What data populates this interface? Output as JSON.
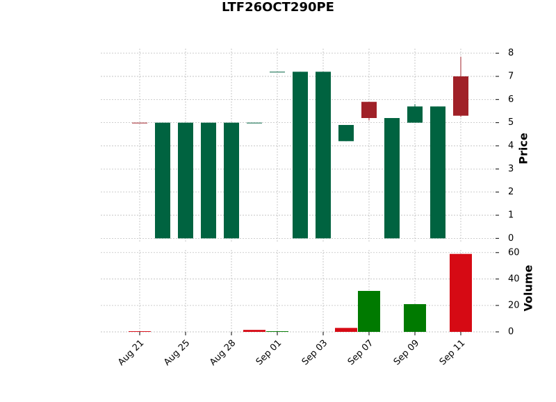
{
  "chart_data": {
    "type": "candlestick",
    "title": "LTF26OCT290PE",
    "categories": [
      "Aug 21",
      null,
      "Aug 25",
      null,
      "Aug 28",
      null,
      "Sep 01",
      null,
      "Sep 03",
      null,
      "Sep 07",
      null,
      "Sep 09",
      null,
      "Sep 11"
    ],
    "open": [
      5,
      0,
      0,
      0,
      0,
      5,
      7.2,
      0,
      0,
      4.2,
      5.9,
      0,
      5.0,
      0,
      7.0
    ],
    "high": [
      5,
      5,
      5,
      5,
      5,
      5,
      7.2,
      7.2,
      7.2,
      4.9,
      5.9,
      5.2,
      5.8,
      5.7,
      7.85
    ],
    "low": [
      5,
      0,
      0,
      0,
      0,
      5,
      7.2,
      0,
      0,
      4.2,
      5.1,
      0,
      5.0,
      0,
      5.25
    ],
    "close": [
      5,
      5,
      5,
      5,
      5,
      5,
      7.2,
      7.2,
      7.2,
      4.9,
      5.2,
      5.2,
      5.7,
      5.7,
      5.3
    ],
    "up_color": "#006340",
    "down_color": "#a02128",
    "ylabel": "Price",
    "ylim": [
      -0.2,
      8.2
    ],
    "yticks": [
      0,
      1,
      2,
      3,
      4,
      5,
      6,
      7,
      8
    ],
    "volume": {
      "label": "Volume",
      "values": [
        0.5,
        0,
        0,
        0,
        0,
        1.5,
        0.5,
        0,
        0,
        3,
        31,
        0,
        21,
        0,
        59
      ],
      "colors": [
        "#d60a14",
        "#007a00",
        "#007a00",
        "#007a00",
        "#007a00",
        "#d60a14",
        "#007a00",
        "#007a00",
        "#007a00",
        "#d60a14",
        "#007a00",
        "#007a00",
        "#007a00",
        "#007a00",
        "#d60a14"
      ],
      "ylim": [
        0,
        62
      ],
      "yticks": [
        0,
        20,
        40,
        60
      ]
    },
    "grid": true
  }
}
